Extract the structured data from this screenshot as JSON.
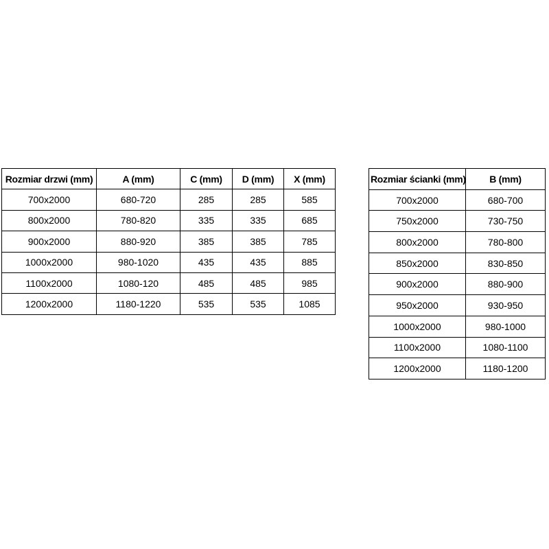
{
  "colors": {
    "background": "#ffffff",
    "border": "#000000",
    "text": "#000000"
  },
  "tables": {
    "doors": {
      "title_column": "Rozmiar drzwi (mm)",
      "headers": [
        "Rozmiar drzwi (mm)",
        "A (mm)",
        "C (mm)",
        "D (mm)",
        "X (mm)"
      ],
      "rows": [
        [
          "700x2000",
          "680-720",
          "285",
          "285",
          "585"
        ],
        [
          "800x2000",
          "780-820",
          "335",
          "335",
          "685"
        ],
        [
          "900x2000",
          "880-920",
          "385",
          "385",
          "785"
        ],
        [
          "1000x2000",
          "980-1020",
          "435",
          "435",
          "885"
        ],
        [
          "1100x2000",
          "1080-120",
          "485",
          "485",
          "985"
        ],
        [
          "1200x2000",
          "1180-1220",
          "535",
          "535",
          "1085"
        ]
      ]
    },
    "walls": {
      "title_column": "Rozmiar ścianki (mm)",
      "headers": [
        "Rozmiar ścianki (mm)",
        "B (mm)"
      ],
      "rows": [
        [
          "700x2000",
          "680-700"
        ],
        [
          "750x2000",
          "730-750"
        ],
        [
          "800x2000",
          "780-800"
        ],
        [
          "850x2000",
          "830-850"
        ],
        [
          "900x2000",
          "880-900"
        ],
        [
          "950x2000",
          "930-950"
        ],
        [
          "1000x2000",
          "980-1000"
        ],
        [
          "1100x2000",
          "1080-1100"
        ],
        [
          "1200x2000",
          "1180-1200"
        ]
      ]
    }
  }
}
